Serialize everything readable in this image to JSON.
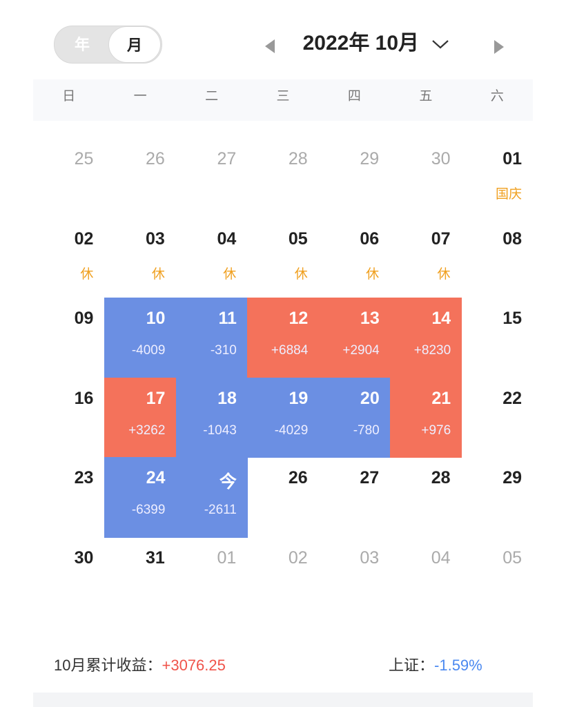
{
  "toggle": {
    "options": [
      "年",
      "月"
    ],
    "active": 1
  },
  "header": {
    "title": "2022年 10月"
  },
  "weekdays": [
    "日",
    "一",
    "二",
    "三",
    "四",
    "五",
    "六"
  ],
  "weeks": [
    [
      {
        "day": "25",
        "muted": true
      },
      {
        "day": "26",
        "muted": true
      },
      {
        "day": "27",
        "muted": true
      },
      {
        "day": "28",
        "muted": true
      },
      {
        "day": "29",
        "muted": true
      },
      {
        "day": "30",
        "muted": true
      },
      {
        "day": "01",
        "note": "国庆"
      }
    ],
    [
      {
        "day": "02",
        "note": "休"
      },
      {
        "day": "03",
        "note": "休"
      },
      {
        "day": "04",
        "note": "休"
      },
      {
        "day": "05",
        "note": "休"
      },
      {
        "day": "06",
        "note": "休"
      },
      {
        "day": "07",
        "note": "休"
      },
      {
        "day": "08"
      }
    ],
    [
      {
        "day": "09"
      },
      {
        "day": "10",
        "note": "-4009",
        "color": "#6b8fe3"
      },
      {
        "day": "11",
        "note": "-310",
        "color": "#6b8fe3"
      },
      {
        "day": "12",
        "note": "+6884",
        "color": "#f4725b"
      },
      {
        "day": "13",
        "note": "+2904",
        "color": "#f4725b"
      },
      {
        "day": "14",
        "note": "+8230",
        "color": "#f4725b"
      },
      {
        "day": "15"
      }
    ],
    [
      {
        "day": "16"
      },
      {
        "day": "17",
        "note": "+3262",
        "color": "#f4725b"
      },
      {
        "day": "18",
        "note": "-1043",
        "color": "#6b8fe3"
      },
      {
        "day": "19",
        "note": "-4029",
        "color": "#6b8fe3"
      },
      {
        "day": "20",
        "note": "-780",
        "color": "#6b8fe3"
      },
      {
        "day": "21",
        "note": "+976",
        "color": "#f4725b"
      },
      {
        "day": "22"
      }
    ],
    [
      {
        "day": "23"
      },
      {
        "day": "24",
        "note": "-6399",
        "color": "#6b8fe3"
      },
      {
        "day": "今",
        "note": "-2611",
        "color": "#6b8fe3"
      },
      {
        "day": "26"
      },
      {
        "day": "27"
      },
      {
        "day": "28"
      },
      {
        "day": "29"
      }
    ],
    [
      {
        "day": "30"
      },
      {
        "day": "31"
      },
      {
        "day": "01",
        "muted": true
      },
      {
        "day": "02",
        "muted": true
      },
      {
        "day": "03",
        "muted": true
      },
      {
        "day": "04",
        "muted": true
      },
      {
        "day": "05",
        "muted": true
      }
    ]
  ],
  "footer": {
    "label": "10月累计收益：",
    "value": "+3076.25",
    "index_label": "上证：",
    "index_value": "-1.59%"
  }
}
